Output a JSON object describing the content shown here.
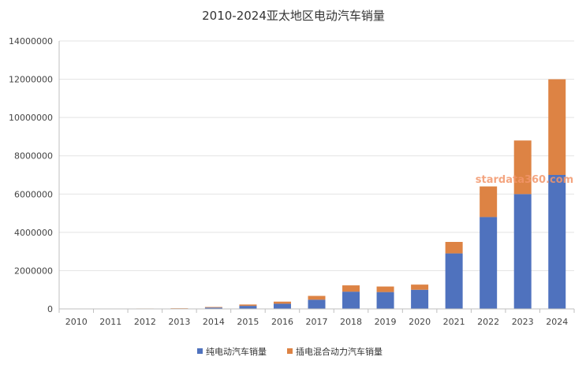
{
  "chart_data": {
    "type": "bar",
    "stacked": true,
    "title": "2010-2024亚太地区电动汽车销量",
    "xlabel": "",
    "ylabel": "",
    "categories": [
      "2010",
      "2011",
      "2012",
      "2013",
      "2014",
      "2015",
      "2016",
      "2017",
      "2018",
      "2019",
      "2020",
      "2021",
      "2022",
      "2023",
      "2024"
    ],
    "series": [
      {
        "name": "纯电动汽车销量",
        "color": "#4f72be",
        "values": [
          5000,
          10000,
          15000,
          20000,
          70000,
          160000,
          270000,
          480000,
          900000,
          880000,
          1000000,
          2900000,
          4800000,
          6000000,
          7000000
        ]
      },
      {
        "name": "插电混合动力汽车销量",
        "color": "#dd8344",
        "values": [
          2000,
          4000,
          8000,
          15000,
          30000,
          70000,
          110000,
          200000,
          330000,
          290000,
          270000,
          600000,
          1600000,
          2800000,
          5000000
        ]
      }
    ],
    "ylim": [
      0,
      14000000
    ],
    "yticks": [
      "0",
      "2000000",
      "4000000",
      "6000000",
      "8000000",
      "10000000",
      "12000000",
      "14000000"
    ],
    "grid": true,
    "legend_position": "bottom",
    "watermark": "stardata360.com"
  }
}
